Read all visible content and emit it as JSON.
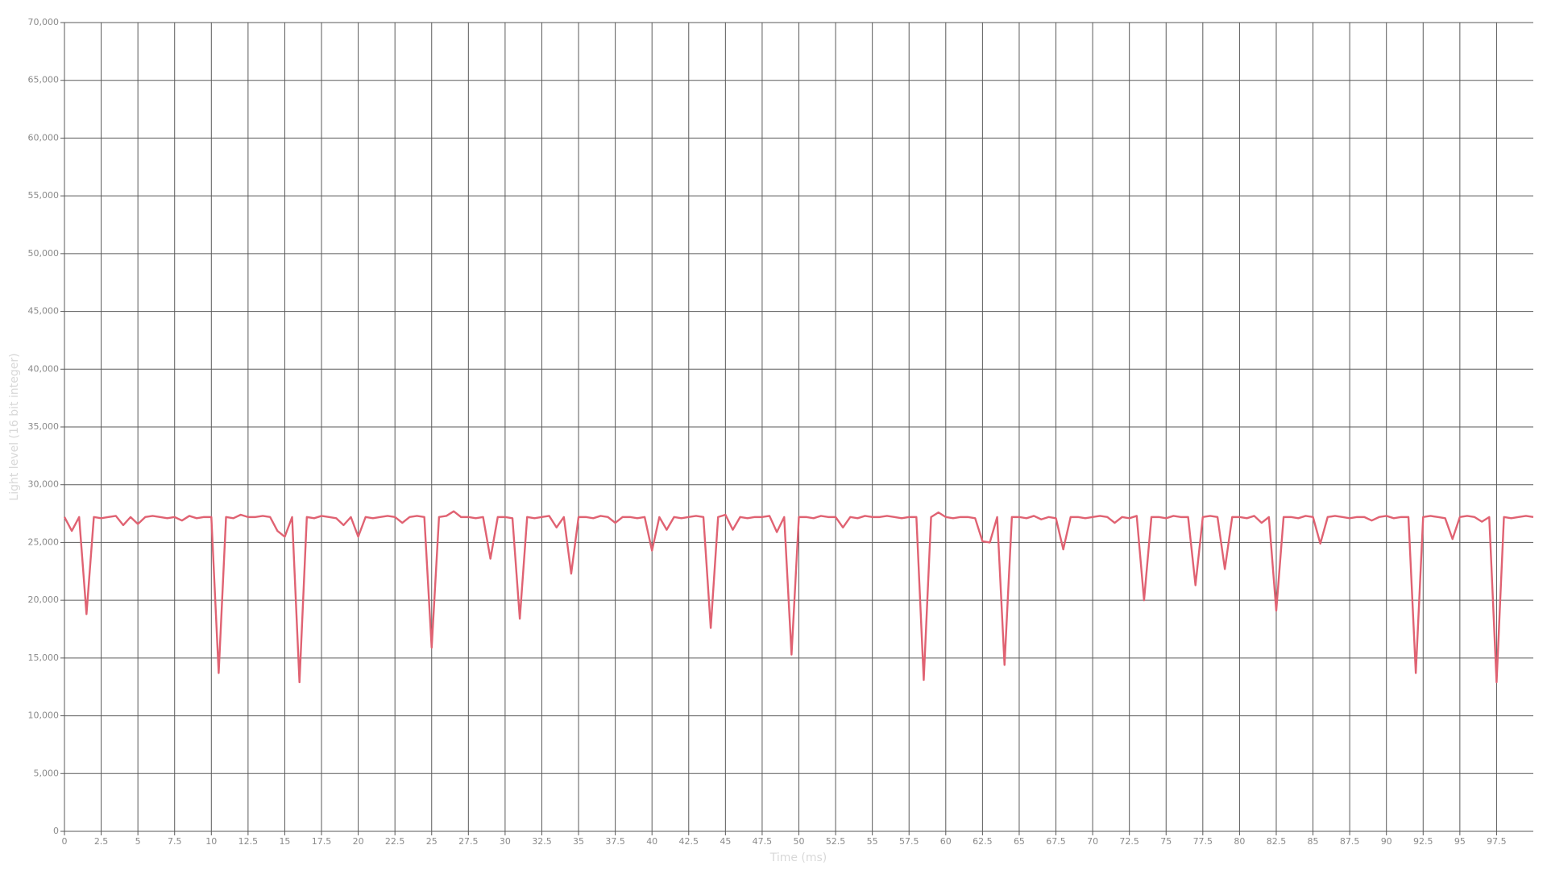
{
  "chart_data": {
    "type": "line",
    "x_label": "Time (ms)",
    "y_label": "Light level (16 bit integer)",
    "grid": true,
    "xlim": [
      0,
      100
    ],
    "xticks": [
      0,
      2.5,
      5,
      7.5,
      10,
      12.5,
      15,
      17.5,
      20,
      22.5,
      25,
      27.5,
      30,
      32.5,
      35,
      37.5,
      40,
      42.5,
      45,
      47.5,
      50,
      52.5,
      55,
      57.5,
      60,
      62.5,
      65,
      67.5,
      70,
      72.5,
      75,
      77.5,
      80,
      82.5,
      85,
      87.5,
      90,
      92.5,
      95,
      97.5
    ],
    "ylim": [
      0,
      70000
    ],
    "yticks": [
      0,
      {
        "value": 5000,
        "label": "5,000"
      },
      {
        "value": 10000,
        "label": "10,000"
      },
      {
        "value": 15000,
        "label": "15,000"
      },
      {
        "value": 20000,
        "label": "20,000"
      },
      {
        "value": 25000,
        "label": "25,000"
      },
      {
        "value": 30000,
        "label": "30,000"
      },
      {
        "value": 35000,
        "label": "35,000"
      },
      {
        "value": 40000,
        "label": "40,000"
      },
      {
        "value": 45000,
        "label": "45,000"
      },
      {
        "value": 50000,
        "label": "50,000"
      },
      {
        "value": 55000,
        "label": "55,000"
      },
      {
        "value": 60000,
        "label": "60,000"
      },
      {
        "value": 65000,
        "label": "65,000"
      },
      {
        "value": 70000,
        "label": "70,000"
      }
    ],
    "x": [
      0,
      0.5,
      1,
      1.5,
      2,
      2.5,
      3,
      3.5,
      4,
      4.5,
      5,
      5.5,
      6,
      6.5,
      7,
      7.5,
      8,
      8.5,
      9,
      9.5,
      10,
      10.5,
      11,
      11.5,
      12,
      12.5,
      13,
      13.5,
      14,
      14.5,
      15,
      15.5,
      16,
      16.5,
      17,
      17.5,
      18,
      18.5,
      19,
      19.5,
      20,
      20.5,
      21,
      21.5,
      22,
      22.5,
      23,
      23.5,
      24,
      24.5,
      25,
      25.5,
      26,
      26.5,
      27,
      27.5,
      28,
      28.5,
      29,
      29.5,
      30,
      30.5,
      31,
      31.5,
      32,
      32.5,
      33,
      33.5,
      34,
      34.5,
      35,
      35.5,
      36,
      36.5,
      37,
      37.5,
      38,
      38.5,
      39,
      39.5,
      40,
      40.5,
      41,
      41.5,
      42,
      42.5,
      43,
      43.5,
      44,
      44.5,
      45,
      45.5,
      46,
      46.5,
      47,
      47.5,
      48,
      48.5,
      49,
      49.5,
      50,
      50.5,
      51,
      51.5,
      52,
      52.5,
      53,
      53.5,
      54,
      54.5,
      55,
      55.5,
      56,
      56.5,
      57,
      57.5,
      58,
      58.5,
      59,
      59.5,
      60,
      60.5,
      61,
      61.5,
      62,
      62.5,
      63,
      63.5,
      64,
      64.5,
      65,
      65.5,
      66,
      66.5,
      67,
      67.5,
      68,
      68.5,
      69,
      69.5,
      70,
      70.5,
      71,
      71.5,
      72,
      72.5,
      73,
      73.5,
      74,
      74.5,
      75,
      75.5,
      76,
      76.5,
      77,
      77.5,
      78,
      78.5,
      79,
      79.5,
      80,
      80.5,
      81,
      81.5,
      82,
      82.5,
      83,
      83.5,
      84,
      84.5,
      85,
      85.5,
      86,
      86.5,
      87,
      87.5,
      88,
      88.5,
      89,
      89.5,
      90,
      90.5,
      91,
      91.5,
      92,
      92.5,
      93,
      93.5,
      94,
      94.5,
      95,
      95.5,
      96,
      96.5,
      97,
      97.5,
      98,
      98.5,
      99,
      99.5,
      100
    ],
    "series": [
      {
        "color": "#e06272",
        "values": [
          27200,
          26000,
          27200,
          18800,
          27200,
          27100,
          27200,
          27300,
          26500,
          27200,
          26600,
          27200,
          27300,
          27200,
          27100,
          27200,
          26900,
          27300,
          27100,
          27200,
          27200,
          13700,
          27200,
          27100,
          27400,
          27200,
          27200,
          27300,
          27200,
          26000,
          25500,
          27200,
          12900,
          27200,
          27100,
          27300,
          27200,
          27100,
          26500,
          27200,
          25500,
          27200,
          27100,
          27200,
          27300,
          27200,
          26700,
          27200,
          27300,
          27200,
          15900,
          27200,
          27300,
          27700,
          27200,
          27200,
          27100,
          27200,
          23600,
          27200,
          27200,
          27100,
          18400,
          27200,
          27100,
          27200,
          27300,
          26300,
          27200,
          22300,
          27200,
          27200,
          27100,
          27300,
          27200,
          26700,
          27200,
          27200,
          27100,
          27200,
          24300,
          27200,
          26100,
          27200,
          27100,
          27200,
          27300,
          27200,
          17600,
          27200,
          27400,
          26100,
          27200,
          27100,
          27200,
          27200,
          27300,
          25900,
          27200,
          15300,
          27200,
          27200,
          27100,
          27300,
          27200,
          27200,
          26300,
          27200,
          27100,
          27300,
          27200,
          27200,
          27300,
          27200,
          27100,
          27200,
          27200,
          13100,
          27200,
          27600,
          27200,
          27100,
          27200,
          27200,
          27100,
          25100,
          25000,
          27200,
          14400,
          27200,
          27200,
          27100,
          27300,
          27000,
          27200,
          27100,
          24400,
          27200,
          27200,
          27100,
          27200,
          27300,
          27200,
          26700,
          27200,
          27100,
          27300,
          20000,
          27200,
          27200,
          27100,
          27300,
          27200,
          27200,
          21300,
          27200,
          27300,
          27200,
          22700,
          27200,
          27200,
          27100,
          27300,
          26700,
          27200,
          19100,
          27200,
          27200,
          27100,
          27300,
          27200,
          24900,
          27200,
          27300,
          27200,
          27100,
          27200,
          27200,
          26900,
          27200,
          27300,
          27100,
          27200,
          27200,
          13700,
          27200,
          27300,
          27200,
          27100,
          25300,
          27200,
          27300,
          27200,
          26800,
          27200,
          12900,
          27200,
          27100,
          27200,
          27300,
          27200
        ]
      }
    ]
  }
}
